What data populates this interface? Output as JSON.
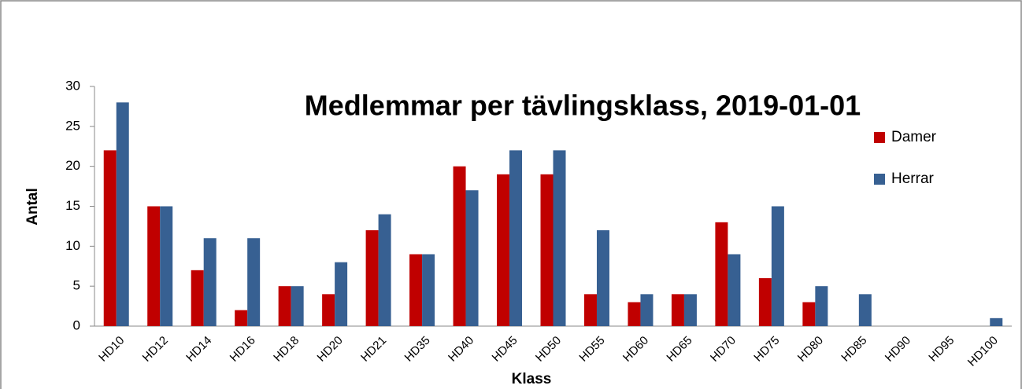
{
  "chart_data": {
    "type": "bar",
    "title": "Medlemmar per tävlingsklass, 2019-01-01",
    "x_label": "Klass",
    "y_label": "Antal",
    "categories": [
      "HD10",
      "HD12",
      "HD14",
      "HD16",
      "HD18",
      "HD20",
      "HD21",
      "HD35",
      "HD40",
      "HD45",
      "HD50",
      "HD55",
      "HD60",
      "HD65",
      "HD70",
      "HD75",
      "HD80",
      "HD85",
      "HD90",
      "HD95",
      "HD100"
    ],
    "series": [
      {
        "name": "Damer",
        "color": "#c00000",
        "values": [
          22,
          15,
          7,
          2,
          5,
          4,
          12,
          9,
          20,
          19,
          19,
          4,
          3,
          4,
          13,
          6,
          3,
          0,
          0,
          0,
          0
        ]
      },
      {
        "name": "Herrar",
        "color": "#376092",
        "values": [
          28,
          15,
          11,
          11,
          5,
          8,
          14,
          9,
          17,
          22,
          22,
          12,
          4,
          4,
          9,
          15,
          5,
          4,
          0,
          0,
          1
        ]
      }
    ],
    "ylim": [
      0,
      30
    ],
    "yticks": [
      0,
      5,
      10,
      15,
      20,
      25,
      30
    ],
    "grid": false,
    "legend": "right"
  }
}
